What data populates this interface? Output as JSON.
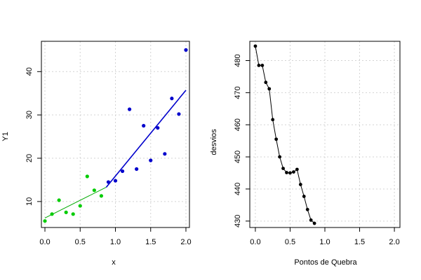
{
  "chart_data": [
    {
      "type": "scatter",
      "xlabel": "x",
      "ylabel": "Y1",
      "xlim": [
        -0.05,
        2.05
      ],
      "ylim": [
        4,
        47
      ],
      "xticks": [
        "0.0",
        "0.5",
        "1.0",
        "1.5",
        "2.0"
      ],
      "yticks": [
        "10",
        "20",
        "30",
        "40"
      ],
      "xtick_values": [
        0,
        0.5,
        1,
        1.5,
        2
      ],
      "ytick_values": [
        10,
        20,
        30,
        40
      ],
      "grid": true,
      "series": [
        {
          "color": "#00cc00",
          "points": [
            [
              0.0,
              5.5
            ],
            [
              0.1,
              7.1
            ],
            [
              0.2,
              10.3
            ],
            [
              0.3,
              7.5
            ],
            [
              0.4,
              7.1
            ],
            [
              0.5,
              9.0
            ],
            [
              0.6,
              15.8
            ],
            [
              0.7,
              12.6
            ],
            [
              0.8,
              11.3
            ]
          ]
        },
        {
          "color": "#0000cc",
          "points": [
            [
              0.9,
              14.5
            ],
            [
              1.0,
              14.8
            ],
            [
              1.1,
              17.0
            ],
            [
              1.2,
              31.3
            ],
            [
              1.3,
              17.5
            ],
            [
              1.4,
              27.5
            ],
            [
              1.5,
              19.5
            ],
            [
              1.6,
              27.0
            ],
            [
              1.7,
              21.0
            ],
            [
              1.8,
              33.8
            ],
            [
              1.9,
              30.2
            ],
            [
              2.0,
              45.0
            ]
          ]
        }
      ],
      "fit_lines": [
        {
          "color": "#00aa00",
          "from": [
            0.0,
            6.2
          ],
          "to": [
            0.87,
            13.3
          ]
        },
        {
          "color": "#0000cc",
          "from": [
            0.87,
            13.3
          ],
          "to": [
            2.0,
            35.7
          ]
        }
      ]
    },
    {
      "type": "line",
      "xlabel": "Pontos de Quebra",
      "ylabel": "desvios",
      "xlim": [
        -0.08,
        2.08
      ],
      "ylim": [
        428,
        486
      ],
      "xticks": [
        "0.0",
        "0.5",
        "1.0",
        "1.5",
        "2.0"
      ],
      "yticks": [
        "430",
        "440",
        "450",
        "460",
        "470",
        "480"
      ],
      "xtick_values": [
        0,
        0.5,
        1,
        1.5,
        2
      ],
      "ytick_values": [
        430,
        440,
        450,
        460,
        470,
        480
      ],
      "grid": true,
      "series": [
        {
          "color": "#000000",
          "x": [
            0.0,
            0.05,
            0.1,
            0.15,
            0.2,
            0.25,
            0.3,
            0.35,
            0.4,
            0.45,
            0.5,
            0.55,
            0.6,
            0.65,
            0.7,
            0.75,
            0.8,
            0.85
          ],
          "y": [
            484.5,
            478.5,
            478.5,
            473.2,
            471.2,
            461.6,
            455.5,
            450.0,
            446.4,
            445.1,
            445.0,
            445.3,
            446.1,
            441.4,
            437.7,
            433.6,
            430.3,
            429.3
          ]
        }
      ]
    }
  ]
}
